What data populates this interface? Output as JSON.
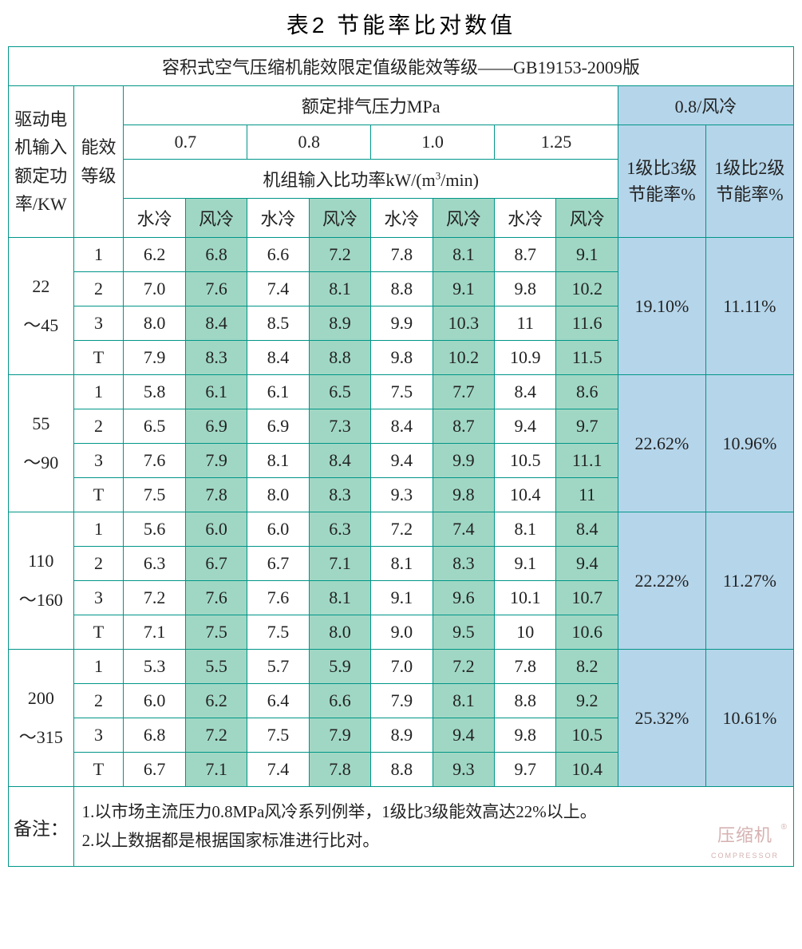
{
  "title": "表2  节能率比对数值",
  "banner": "容积式空气压缩机能效限定值级能效等级——GB19153-2009版",
  "headers": {
    "power": "驱动电机输入额定功率/KW",
    "level": "能效等级",
    "pressure_group": "额定排气压力MPa",
    "pressures": [
      "0.7",
      "0.8",
      "1.0",
      "1.25"
    ],
    "ratio_group_prefix": "机组输入比功率kW/(m",
    "ratio_group_sup": "3",
    "ratio_group_suffix": "/min)",
    "cooling_water": "水冷",
    "cooling_air": "风冷",
    "blue_header": "0.8/风冷",
    "pct_1v3": "1级比3级节能率%",
    "pct_1v2": "1级比2级节能率%"
  },
  "groups": [
    {
      "power": "22～45",
      "rows": [
        {
          "lvl": "1",
          "d": [
            "6.2",
            "6.8",
            "6.6",
            "7.2",
            "7.8",
            "8.1",
            "8.7",
            "9.1"
          ]
        },
        {
          "lvl": "2",
          "d": [
            "7.0",
            "7.6",
            "7.4",
            "8.1",
            "8.8",
            "9.1",
            "9.8",
            "10.2"
          ]
        },
        {
          "lvl": "3",
          "d": [
            "8.0",
            "8.4",
            "8.5",
            "8.9",
            "9.9",
            "10.3",
            "11",
            "11.6"
          ]
        },
        {
          "lvl": "T",
          "d": [
            "7.9",
            "8.3",
            "8.4",
            "8.8",
            "9.8",
            "10.2",
            "10.9",
            "11.5"
          ]
        }
      ],
      "pct3": "19.10%",
      "pct2": "11.11%"
    },
    {
      "power": "55～90",
      "rows": [
        {
          "lvl": "1",
          "d": [
            "5.8",
            "6.1",
            "6.1",
            "6.5",
            "7.5",
            "7.7",
            "8.4",
            "8.6"
          ]
        },
        {
          "lvl": "2",
          "d": [
            "6.5",
            "6.9",
            "6.9",
            "7.3",
            "8.4",
            "8.7",
            "9.4",
            "9.7"
          ]
        },
        {
          "lvl": "3",
          "d": [
            "7.6",
            "7.9",
            "8.1",
            "8.4",
            "9.4",
            "9.9",
            "10.5",
            "11.1"
          ]
        },
        {
          "lvl": "T",
          "d": [
            "7.5",
            "7.8",
            "8.0",
            "8.3",
            "9.3",
            "9.8",
            "10.4",
            "11"
          ]
        }
      ],
      "pct3": "22.62%",
      "pct2": "10.96%"
    },
    {
      "power": "110～160",
      "rows": [
        {
          "lvl": "1",
          "d": [
            "5.6",
            "6.0",
            "6.0",
            "6.3",
            "7.2",
            "7.4",
            "8.1",
            "8.4"
          ]
        },
        {
          "lvl": "2",
          "d": [
            "6.3",
            "6.7",
            "6.7",
            "7.1",
            "8.1",
            "8.3",
            "9.1",
            "9.4"
          ]
        },
        {
          "lvl": "3",
          "d": [
            "7.2",
            "7.6",
            "7.6",
            "8.1",
            "9.1",
            "9.6",
            "10.1",
            "10.7"
          ]
        },
        {
          "lvl": "T",
          "d": [
            "7.1",
            "7.5",
            "7.5",
            "8.0",
            "9.0",
            "9.5",
            "10",
            "10.6"
          ]
        }
      ],
      "pct3": "22.22%",
      "pct2": "11.27%"
    },
    {
      "power": "200～315",
      "rows": [
        {
          "lvl": "1",
          "d": [
            "5.3",
            "5.5",
            "5.7",
            "5.9",
            "7.0",
            "7.2",
            "7.8",
            "8.2"
          ]
        },
        {
          "lvl": "2",
          "d": [
            "6.0",
            "6.2",
            "6.4",
            "6.6",
            "7.9",
            "8.1",
            "8.8",
            "9.2"
          ]
        },
        {
          "lvl": "3",
          "d": [
            "6.8",
            "7.2",
            "7.5",
            "7.9",
            "8.9",
            "9.4",
            "9.8",
            "10.5"
          ]
        },
        {
          "lvl": "T",
          "d": [
            "6.7",
            "7.1",
            "7.4",
            "7.8",
            "8.8",
            "9.3",
            "9.7",
            "10.4"
          ]
        }
      ],
      "pct3": "25.32%",
      "pct2": "10.61%"
    }
  ],
  "notes": {
    "label": "备注：",
    "line1": "1.以市场主流压力0.8MPa风冷系列例举，1级比3级能效高达22%以上。",
    "line2": "2.以上数据都是根据国家标准进行比对。"
  },
  "watermark": {
    "cn": "压缩机",
    "en": "COMPRESSOR"
  },
  "style": {
    "border_color": "#009688",
    "green_bg": "#a0d7c4",
    "blue_bg": "#b5d5ea",
    "air_cols": [
      1,
      3,
      5,
      7
    ]
  }
}
